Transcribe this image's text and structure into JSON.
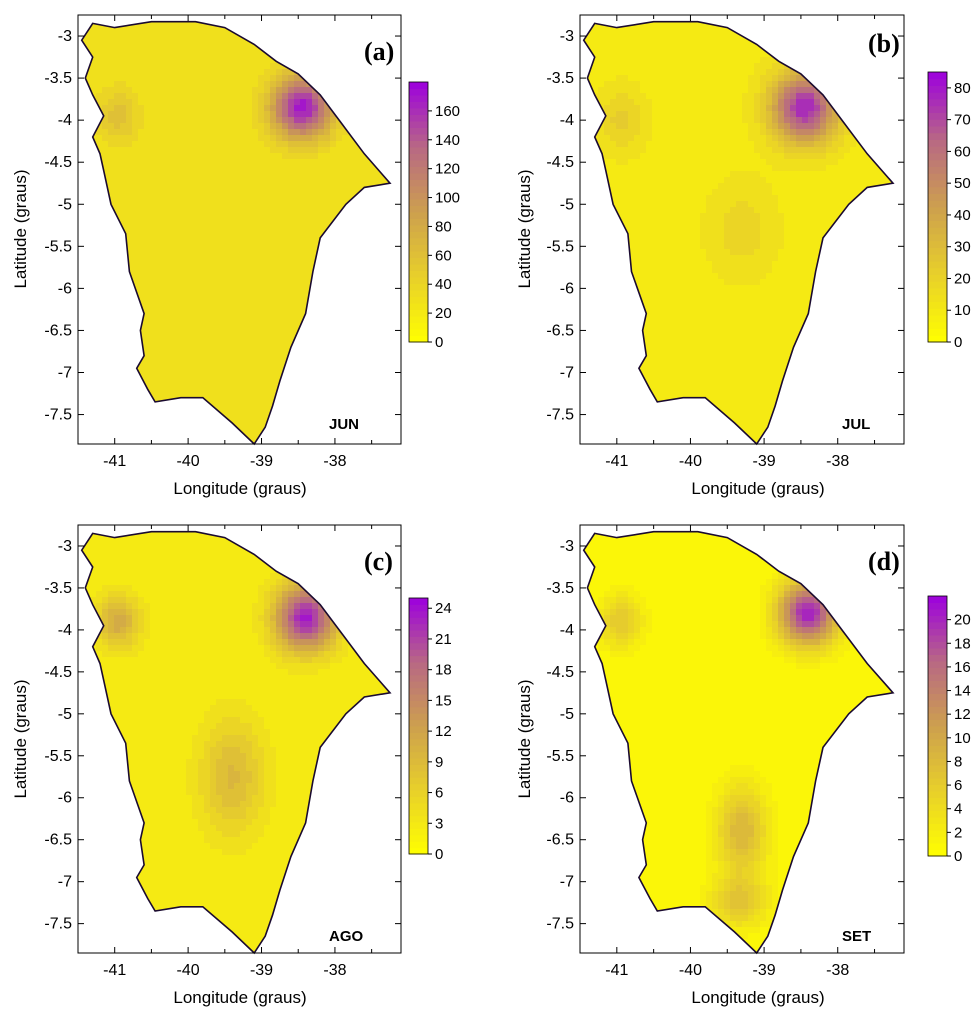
{
  "chart_data": [
    {
      "type": "heatmap",
      "panel_label": "(a)",
      "month": "JUN",
      "xlabel": "Longitude (graus)",
      "ylabel": "Latitude (graus)",
      "xlim": [
        -41.5,
        -37.1
      ],
      "ylim": [
        -7.85,
        -2.75
      ],
      "x_ticks": [
        "-41",
        "-40",
        "-39",
        "-38"
      ],
      "y_ticks": [
        "-3",
        "-3.5",
        "-4",
        "-4.5",
        "-5",
        "-5.5",
        "-6",
        "-6.5",
        "-7",
        "-7.5"
      ],
      "colorbar": {
        "min": 0,
        "max": 180,
        "ticks": [
          "0",
          "20",
          "40",
          "60",
          "80",
          "100",
          "120",
          "140",
          "160"
        ]
      },
      "field": {
        "base": 30,
        "peaks": [
          {
            "lon": -38.45,
            "lat": -3.85,
            "value": 175,
            "sx": 0.42,
            "sy": 0.38
          },
          {
            "lon": -40.95,
            "lat": -3.95,
            "value": 65,
            "sx": 0.3,
            "sy": 0.35
          },
          {
            "lon": -39.3,
            "lat": -4.9,
            "value": 30,
            "sx": 0.8,
            "sy": 0.9
          }
        ]
      }
    },
    {
      "type": "heatmap",
      "panel_label": "(b)",
      "month": "JUL",
      "xlabel": "Longitude (graus)",
      "ylabel": "Latitude (graus)",
      "xlim": [
        -41.5,
        -37.1
      ],
      "ylim": [
        -7.85,
        -2.75
      ],
      "x_ticks": [
        "-41",
        "-40",
        "-39",
        "-38"
      ],
      "y_ticks": [
        "-3",
        "-3.5",
        "-4",
        "-4.5",
        "-5",
        "-5.5",
        "-6",
        "-6.5",
        "-7",
        "-7.5"
      ],
      "colorbar": {
        "min": 0,
        "max": 85,
        "ticks": [
          "0",
          "10",
          "20",
          "30",
          "40",
          "50",
          "60",
          "70",
          "80"
        ]
      },
      "field": {
        "base": 12,
        "peaks": [
          {
            "lon": -38.45,
            "lat": -3.85,
            "value": 80,
            "sx": 0.45,
            "sy": 0.42
          },
          {
            "lon": -40.95,
            "lat": -4.0,
            "value": 25,
            "sx": 0.32,
            "sy": 0.38
          },
          {
            "lon": -39.3,
            "lat": -5.3,
            "value": 22,
            "sx": 0.45,
            "sy": 0.55
          }
        ]
      }
    },
    {
      "type": "heatmap",
      "panel_label": "(c)",
      "month": "AGO",
      "xlabel": "Longitude (graus)",
      "ylabel": "Latitude (graus)",
      "xlim": [
        -41.5,
        -37.1
      ],
      "ylim": [
        -7.85,
        -2.75
      ],
      "x_ticks": [
        "-41",
        "-40",
        "-39",
        "-38"
      ],
      "y_ticks": [
        "-3",
        "-3.5",
        "-4",
        "-4.5",
        "-5",
        "-5.5",
        "-6",
        "-6.5",
        "-7",
        "-7.5"
      ],
      "colorbar": {
        "min": 0,
        "max": 25,
        "ticks": [
          "0",
          "3",
          "6",
          "9",
          "12",
          "15",
          "18",
          "21",
          "24"
        ]
      },
      "field": {
        "base": 3,
        "peaks": [
          {
            "lon": -38.4,
            "lat": -3.85,
            "value": 24,
            "sx": 0.42,
            "sy": 0.4
          },
          {
            "lon": -40.95,
            "lat": -3.9,
            "value": 12,
            "sx": 0.3,
            "sy": 0.32
          },
          {
            "lon": -39.4,
            "lat": -5.75,
            "value": 10,
            "sx": 0.45,
            "sy": 0.7
          }
        ]
      }
    },
    {
      "type": "heatmap",
      "panel_label": "(d)",
      "month": "SET",
      "xlabel": "Longitude (graus)",
      "ylabel": "Latitude (graus)",
      "xlim": [
        -41.5,
        -37.1
      ],
      "ylim": [
        -7.85,
        -2.75
      ],
      "x_ticks": [
        "-41",
        "-40",
        "-39",
        "-38"
      ],
      "y_ticks": [
        "-3",
        "-3.5",
        "-4",
        "-4.5",
        "-5",
        "-5.5",
        "-6",
        "-6.5",
        "-7",
        "-7.5"
      ],
      "colorbar": {
        "min": 0,
        "max": 22,
        "ticks": [
          "0",
          "2",
          "4",
          "6",
          "8",
          "10",
          "12",
          "14",
          "16",
          "18",
          "20"
        ]
      },
      "field": {
        "base": 1,
        "peaks": [
          {
            "lon": -38.4,
            "lat": -3.8,
            "value": 21,
            "sx": 0.4,
            "sy": 0.38
          },
          {
            "lon": -40.95,
            "lat": -3.9,
            "value": 7,
            "sx": 0.3,
            "sy": 0.32
          },
          {
            "lon": -39.3,
            "lat": -6.4,
            "value": 9,
            "sx": 0.35,
            "sy": 0.55
          },
          {
            "lon": -39.35,
            "lat": -7.25,
            "value": 7,
            "sx": 0.4,
            "sy": 0.3
          }
        ]
      }
    }
  ],
  "state_outline": {
    "lon": [
      -41.3,
      -41.0,
      -40.5,
      -39.9,
      -39.5,
      -39.1,
      -38.8,
      -38.5,
      -38.2,
      -37.9,
      -37.6,
      -37.25,
      -37.6,
      -37.85,
      -38.2,
      -38.3,
      -38.4,
      -38.6,
      -38.75,
      -38.85,
      -38.95,
      -39.1,
      -39.4,
      -39.8,
      -40.1,
      -40.45,
      -40.55,
      -40.7,
      -40.6,
      -40.65,
      -40.6,
      -40.8,
      -40.85,
      -41.05,
      -41.15,
      -41.2,
      -41.3,
      -41.15,
      -41.3,
      -41.4,
      -41.3,
      -41.45,
      -41.3
    ],
    "lat": [
      -2.85,
      -2.9,
      -2.83,
      -2.83,
      -2.9,
      -3.1,
      -3.3,
      -3.45,
      -3.7,
      -4.05,
      -4.4,
      -4.75,
      -4.8,
      -5.0,
      -5.4,
      -5.8,
      -6.3,
      -6.7,
      -7.1,
      -7.4,
      -7.65,
      -7.85,
      -7.6,
      -7.3,
      -7.3,
      -7.35,
      -7.2,
      -6.95,
      -6.8,
      -6.5,
      -6.3,
      -5.8,
      -5.35,
      -5.0,
      -4.6,
      -4.4,
      -4.2,
      -3.95,
      -3.7,
      -3.5,
      -3.25,
      -3.05,
      -2.85
    ]
  }
}
